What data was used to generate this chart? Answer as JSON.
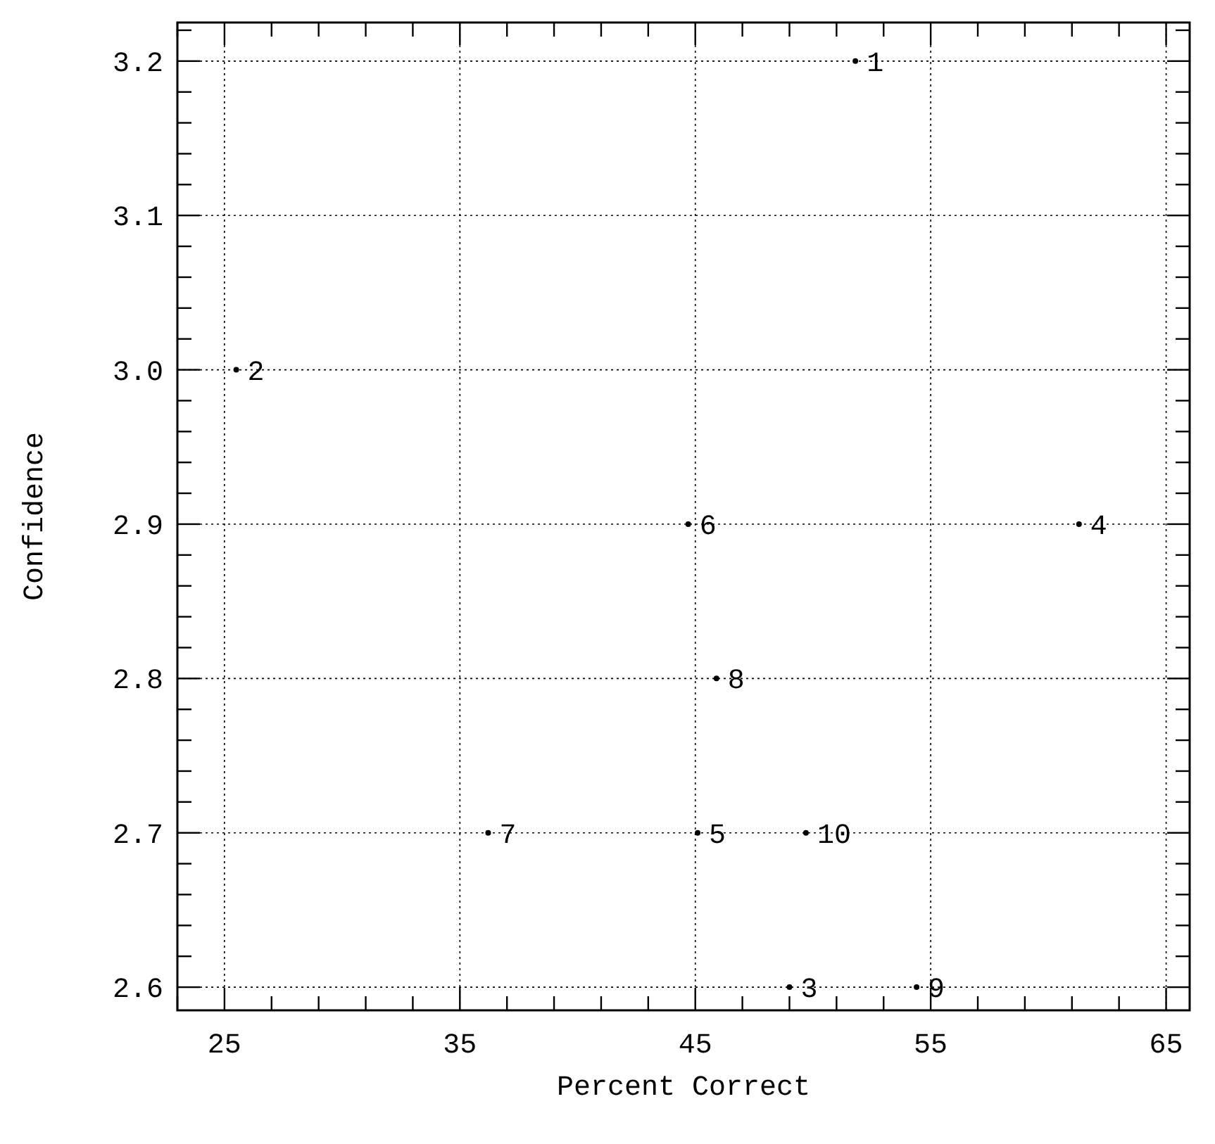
{
  "chart_data": {
    "type": "scatter",
    "xlabel": "Percent Correct",
    "ylabel": "Confidence",
    "x": [
      51.8,
      25.5,
      49.0,
      61.3,
      45.1,
      44.7,
      36.2,
      45.9,
      54.4,
      49.7
    ],
    "values": [
      3.2,
      3.0,
      2.6,
      2.9,
      2.7,
      2.9,
      2.7,
      2.8,
      2.6,
      2.7
    ],
    "color": "#000000",
    "marker": "circle",
    "grid": true,
    "xlim": [
      23,
      66
    ],
    "ylim": [
      2.585,
      3.225
    ],
    "xticks": [
      {
        "value": 23,
        "label": null
      },
      25,
      {
        "value": 27,
        "label": null
      },
      {
        "value": 29,
        "label": null
      },
      {
        "value": 31,
        "label": null
      },
      {
        "value": 33,
        "label": null
      },
      35,
      {
        "value": 37,
        "label": null
      },
      {
        "value": 39,
        "label": null
      },
      {
        "value": 41,
        "label": null
      },
      {
        "value": 43,
        "label": null
      },
      45,
      {
        "value": 47,
        "label": null
      },
      {
        "value": 49,
        "label": null
      },
      {
        "value": 51,
        "label": null
      },
      {
        "value": 53,
        "label": null
      },
      55,
      {
        "value": 57,
        "label": null
      },
      {
        "value": 59,
        "label": null
      },
      {
        "value": 61,
        "label": null
      },
      {
        "value": 63,
        "label": null
      },
      65
    ],
    "yticks": [
      {
        "value": 2.6,
        "label": "2.6"
      },
      {
        "value": 2.62,
        "label": null
      },
      {
        "value": 2.64,
        "label": null
      },
      {
        "value": 2.66,
        "label": null
      },
      {
        "value": 2.68,
        "label": null
      },
      {
        "value": 2.7,
        "label": "2.7"
      },
      {
        "value": 2.72,
        "label": null
      },
      {
        "value": 2.74,
        "label": null
      },
      {
        "value": 2.76,
        "label": null
      },
      {
        "value": 2.78,
        "label": null
      },
      {
        "value": 2.8,
        "label": "2.8"
      },
      {
        "value": 2.82,
        "label": null
      },
      {
        "value": 2.84,
        "label": null
      },
      {
        "value": 2.86,
        "label": null
      },
      {
        "value": 2.88,
        "label": null
      },
      {
        "value": 2.9,
        "label": "2.9"
      },
      {
        "value": 2.92,
        "label": null
      },
      {
        "value": 2.94,
        "label": null
      },
      {
        "value": 2.96,
        "label": null
      },
      {
        "value": 2.98,
        "label": null
      },
      {
        "value": 3.0,
        "label": "3.0"
      },
      {
        "value": 3.02,
        "label": null
      },
      {
        "value": 3.04,
        "label": null
      },
      {
        "value": 3.06,
        "label": null
      },
      {
        "value": 3.08,
        "label": null
      },
      {
        "value": 3.1,
        "label": "3.1"
      },
      {
        "value": 3.12,
        "label": null
      },
      {
        "value": 3.14,
        "label": null
      },
      {
        "value": 3.16,
        "label": null
      },
      {
        "value": 3.18,
        "label": null
      },
      {
        "value": 3.2,
        "label": "3.2"
      },
      {
        "value": 3.22,
        "label": null
      }
    ],
    "annotations": [
      {
        "text": "1",
        "x": 51.8,
        "y": 3.2
      },
      {
        "text": "2",
        "x": 25.5,
        "y": 3.0
      },
      {
        "text": "3",
        "x": 49.0,
        "y": 2.6
      },
      {
        "text": "4",
        "x": 61.3,
        "y": 2.9
      },
      {
        "text": "5",
        "x": 45.1,
        "y": 2.7
      },
      {
        "text": "6",
        "x": 44.7,
        "y": 2.9
      },
      {
        "text": "7",
        "x": 36.2,
        "y": 2.7
      },
      {
        "text": "8",
        "x": 45.9,
        "y": 2.8
      },
      {
        "text": "9",
        "x": 54.4,
        "y": 2.6
      },
      {
        "text": "10",
        "x": 49.7,
        "y": 2.7
      }
    ]
  }
}
